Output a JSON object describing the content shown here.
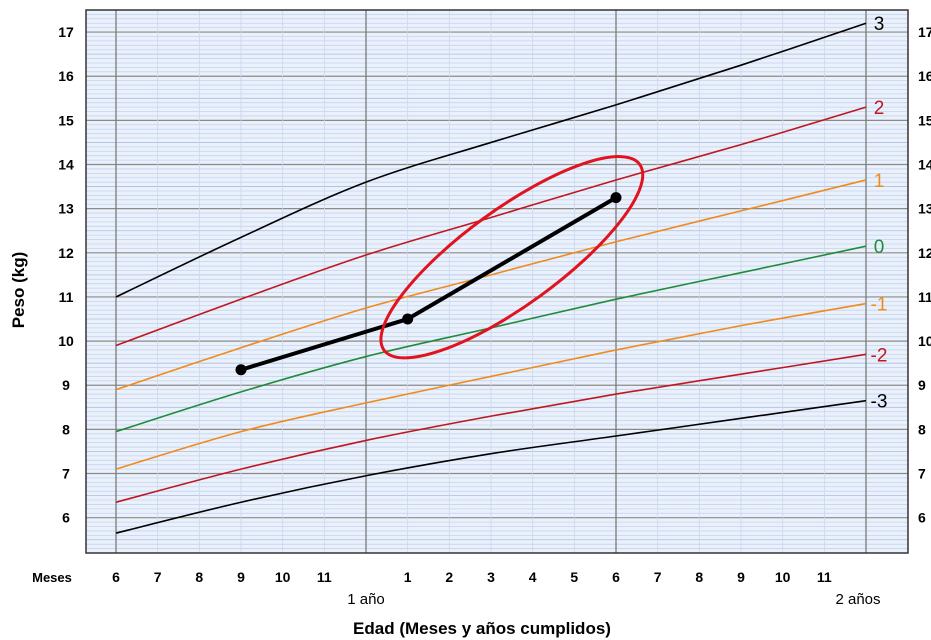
{
  "chart_data": {
    "type": "line",
    "title": "",
    "xlabel": "Edad (Meses y años cumplidos)",
    "ylabel": "Peso (kg)",
    "xlim": [
      6,
      24
    ],
    "ylim": [
      5.2,
      17.5
    ],
    "grid": true,
    "legend": "none",
    "x_tick_row_label": "Meses",
    "x_ticks": [
      {
        "x": 6,
        "label": "6"
      },
      {
        "x": 7,
        "label": "7"
      },
      {
        "x": 8,
        "label": "8"
      },
      {
        "x": 9,
        "label": "9"
      },
      {
        "x": 10,
        "label": "10"
      },
      {
        "x": 11,
        "label": "11"
      },
      {
        "x": 13,
        "label": "1"
      },
      {
        "x": 14,
        "label": "2"
      },
      {
        "x": 15,
        "label": "3"
      },
      {
        "x": 16,
        "label": "4"
      },
      {
        "x": 17,
        "label": "5"
      },
      {
        "x": 18,
        "label": "6"
      },
      {
        "x": 19,
        "label": "7"
      },
      {
        "x": 20,
        "label": "8"
      },
      {
        "x": 21,
        "label": "9"
      },
      {
        "x": 22,
        "label": "10"
      },
      {
        "x": 23,
        "label": "11"
      }
    ],
    "year_ticks": [
      {
        "x": 12,
        "label": "1 año"
      },
      {
        "x": 24,
        "label": "2 años"
      }
    ],
    "y_ticks": [
      6,
      7,
      8,
      9,
      10,
      11,
      12,
      13,
      14,
      15,
      16,
      17
    ],
    "series": [
      {
        "name": "3",
        "color": "#000000",
        "x": [
          6,
          9,
          12,
          15,
          18,
          21,
          24
        ],
        "y": [
          11.0,
          12.35,
          13.6,
          14.5,
          15.35,
          16.25,
          17.2
        ]
      },
      {
        "name": "2",
        "color": "#c0171e",
        "x": [
          6,
          9,
          12,
          15,
          18,
          21,
          24
        ],
        "y": [
          9.9,
          10.95,
          11.95,
          12.8,
          13.65,
          14.45,
          15.3
        ]
      },
      {
        "name": "1",
        "color": "#f08a1c",
        "x": [
          6,
          9,
          12,
          15,
          18,
          21,
          24
        ],
        "y": [
          8.9,
          9.85,
          10.75,
          11.5,
          12.25,
          12.95,
          13.65
        ]
      },
      {
        "name": "0",
        "color": "#1e8c3a",
        "x": [
          6,
          9,
          12,
          15,
          18,
          21,
          24
        ],
        "y": [
          7.95,
          8.85,
          9.65,
          10.3,
          10.95,
          11.55,
          12.15
        ]
      },
      {
        "name": "-1",
        "color": "#f08a1c",
        "x": [
          6,
          9,
          12,
          15,
          18,
          21,
          24
        ],
        "y": [
          7.1,
          7.95,
          8.6,
          9.2,
          9.8,
          10.35,
          10.85
        ]
      },
      {
        "name": "-2",
        "color": "#c0171e",
        "x": [
          6,
          9,
          12,
          15,
          18,
          21,
          24
        ],
        "y": [
          6.35,
          7.1,
          7.75,
          8.3,
          8.8,
          9.25,
          9.7
        ]
      },
      {
        "name": "-3",
        "color": "#000000",
        "x": [
          6,
          9,
          12,
          15,
          18,
          21,
          24
        ],
        "y": [
          5.65,
          6.35,
          6.95,
          7.45,
          7.85,
          8.25,
          8.65
        ]
      }
    ],
    "child_measurements": {
      "color": "#000000",
      "points": [
        {
          "x": 9,
          "y": 9.35
        },
        {
          "x": 13,
          "y": 10.5
        },
        {
          "x": 18,
          "y": 13.25
        }
      ]
    },
    "highlight_ellipse": {
      "color": "#e0141e",
      "center": {
        "x": 15.5,
        "y": 11.9
      },
      "shape": "tilted ellipse enclosing the last two measurements"
    }
  }
}
